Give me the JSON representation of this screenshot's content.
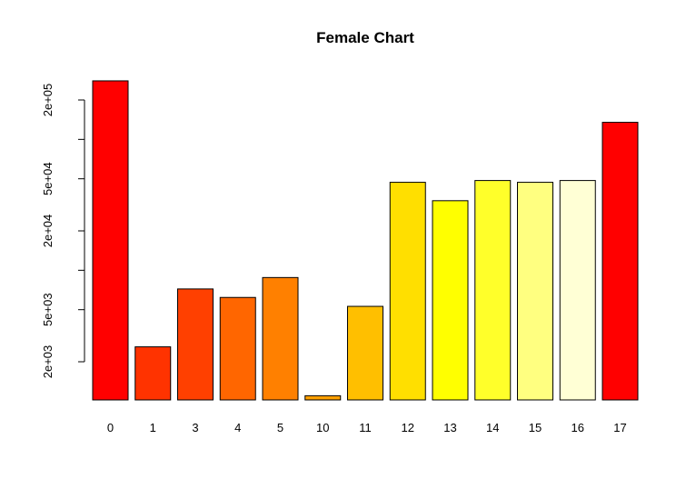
{
  "chart_data": {
    "type": "bar",
    "title": "Female Chart",
    "xlabel": "",
    "ylabel": "",
    "y_scale": "log",
    "ylim": [
      1000,
      300000
    ],
    "grid": false,
    "legend": "none",
    "categories": [
      "0",
      "1",
      "3",
      "4",
      "5",
      "10",
      "11",
      "12",
      "13",
      "14",
      "15",
      "16",
      "17"
    ],
    "values": [
      280000,
      2600,
      7200,
      6200,
      8800,
      1100,
      5300,
      47000,
      34000,
      48500,
      47000,
      48500,
      135000
    ],
    "colors": [
      "#FF0000",
      "#FF3300",
      "#FF4000",
      "#FF6600",
      "#FF8000",
      "#FFA000",
      "#FFBF00",
      "#FFDF00",
      "#FFFF00",
      "#FFFF2A",
      "#FFFF80",
      "#FFFFD5",
      "#FF0000"
    ],
    "y_ticks": [
      {
        "value": 2000,
        "label": "2e+03"
      },
      {
        "value": 5000,
        "label": "5e+03"
      },
      {
        "value": 10000,
        "label": ""
      },
      {
        "value": 20000,
        "label": "2e+04"
      },
      {
        "value": 50000,
        "label": "5e+04"
      },
      {
        "value": 100000,
        "label": ""
      },
      {
        "value": 200000,
        "label": "2e+05"
      }
    ]
  }
}
